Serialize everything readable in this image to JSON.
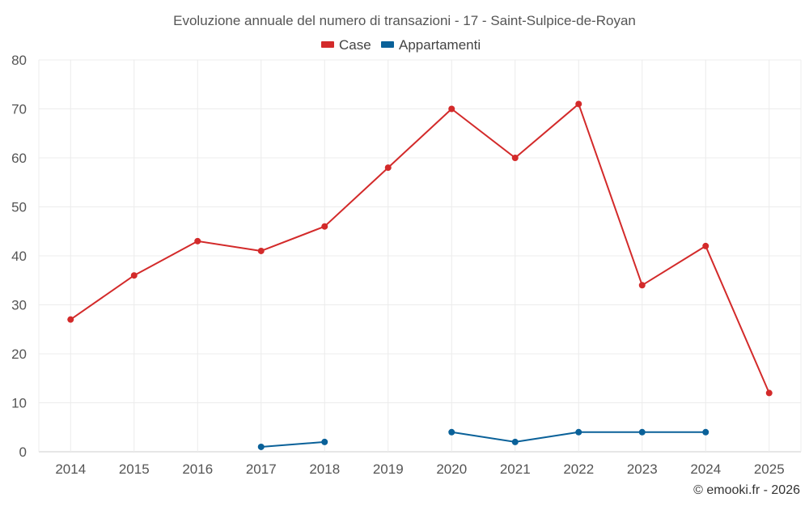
{
  "chart_data": {
    "type": "line",
    "title": "Evoluzione annuale del numero di transazioni - 17 - Saint-Sulpice-de-Royan",
    "categories": [
      "2014",
      "2015",
      "2016",
      "2017",
      "2018",
      "2019",
      "2020",
      "2021",
      "2022",
      "2023",
      "2024",
      "2025"
    ],
    "series": [
      {
        "name": "Case",
        "color": "#d32a2a",
        "values": [
          27,
          36,
          43,
          41,
          46,
          58,
          70,
          60,
          71,
          34,
          42,
          12
        ]
      },
      {
        "name": "Appartamenti",
        "color": "#0a6199",
        "values": [
          null,
          null,
          null,
          1,
          2,
          null,
          4,
          2,
          4,
          4,
          4,
          null
        ]
      }
    ],
    "ylim": [
      0,
      80
    ],
    "yticks": [
      0,
      10,
      20,
      30,
      40,
      50,
      60,
      70,
      80
    ],
    "xlabel": "",
    "ylabel": "",
    "grid": true,
    "legend": "top-center"
  },
  "credit": "© emooki.fr - 2026"
}
